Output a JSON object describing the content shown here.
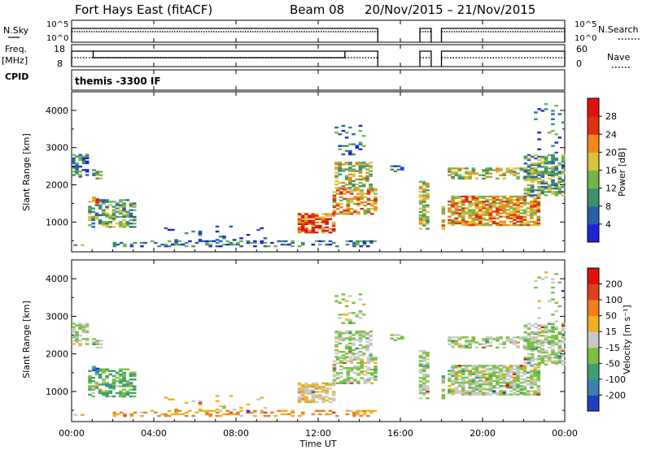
{
  "header": {
    "station": "Fort Hays East (fitACF)",
    "beam": "Beam 08",
    "dates": "20/Nov/2015 – 21/Nov/2015"
  },
  "top_panels": {
    "nsky_label": "N.Sky",
    "nsky_ticks": [
      "10^5",
      "10^0"
    ],
    "nsearch_label": "N.Search",
    "nsearch_ticks": [
      "10^5",
      "10^0"
    ],
    "freq_label": "Freq.",
    "freq_unit": "[MHz]",
    "freq_ticks": [
      "18",
      "8"
    ],
    "nave_label": "Nave",
    "nave_ticks": [
      "60",
      "0"
    ],
    "cpid_label": "CPID",
    "cpid_value": "themis -3300 IF"
  },
  "chart_data": [
    {
      "type": "heatmap",
      "name": "power-panel",
      "ylabel": "Slant Range [km]",
      "yticks": [
        1000,
        2000,
        3000,
        4000
      ],
      "ylim": [
        200,
        4500
      ],
      "xlim_hours": [
        0,
        24
      ],
      "colorbar_label": "Power [dB]",
      "colorbar_ticks": [
        "4",
        "8",
        "12",
        "16",
        "20",
        "24",
        "28"
      ],
      "colorbar_colors": [
        "#1c24d8",
        "#2c5fa8",
        "#3f8f6e",
        "#72b54a",
        "#d8c33a",
        "#f08a1a",
        "#e03010"
      ],
      "colorbar_colors_hi": "#e01010"
    },
    {
      "type": "heatmap",
      "name": "velocity-panel",
      "ylabel": "Slant Range [km]",
      "yticks": [
        1000,
        2000,
        3000,
        4000
      ],
      "ylim": [
        200,
        4500
      ],
      "xlim_hours": [
        0,
        24
      ],
      "colorbar_label": "Velocity [m s⁻¹]",
      "colorbar_ticks": [
        "200",
        "100",
        "50",
        "15",
        "-15",
        "-50",
        "-100",
        "-200"
      ],
      "colorbar_colors": [
        "#2040c0",
        "#3f7fb0",
        "#3f9f70",
        "#7ac040",
        "#c8c8c8",
        "#f0b020",
        "#f08020",
        "#e04020",
        "#e01010"
      ]
    }
  ],
  "x_axis": {
    "ticks": [
      "00:00",
      "04:00",
      "08:00",
      "12:00",
      "16:00",
      "20:00",
      "00:00"
    ],
    "label": "Time UT"
  }
}
